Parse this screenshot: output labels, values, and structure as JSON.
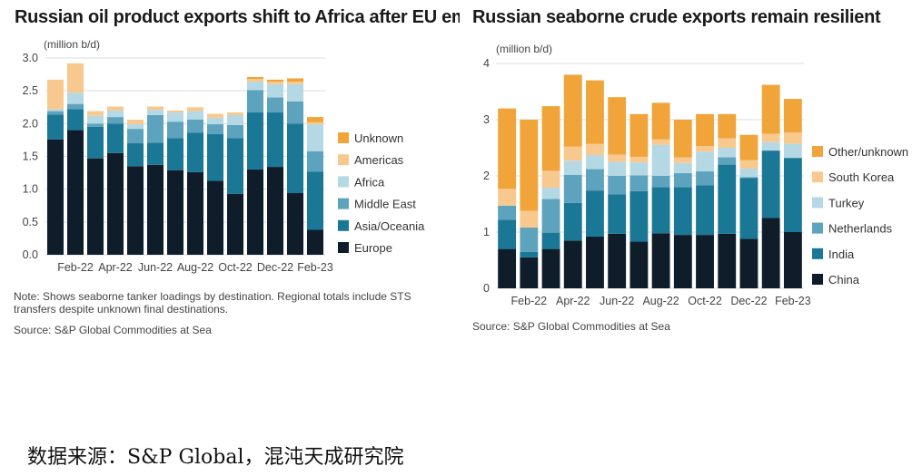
{
  "footer": {
    "caption": "数据来源：S&P Global，混沌天成研究院"
  },
  "chart_data": [
    {
      "type": "bar",
      "stacked": true,
      "title": "Russian oil product exports shift to Africa after EU embargo",
      "ylabel": "(million b/d)",
      "ylim": [
        0,
        3.0
      ],
      "yticks": [
        "0.0",
        "0.5",
        "1.0",
        "1.5",
        "2.0",
        "2.5",
        "3.0"
      ],
      "categories": [
        "Jan-22",
        "Feb-22",
        "Mar-22",
        "Apr-22",
        "May-22",
        "Jun-22",
        "Jul-22",
        "Aug-22",
        "Sep-22",
        "Oct-22",
        "Nov-22",
        "Dec-22",
        "Jan-23",
        "Feb-23"
      ],
      "xtick_labels": [
        "",
        "Feb-22",
        "",
        "Apr-22",
        "",
        "Jun-22",
        "",
        "Aug-22",
        "",
        "Oct-22",
        "",
        "Dec-22",
        "",
        "Feb-23"
      ],
      "legend_position": "right",
      "grid": "horizontal",
      "series": [
        {
          "name": "Europe",
          "color": "#0f1d2b",
          "values": [
            1.76,
            1.9,
            1.47,
            1.55,
            1.35,
            1.37,
            1.29,
            1.26,
            1.13,
            0.93,
            1.3,
            1.34,
            0.94,
            0.38
          ]
        },
        {
          "name": "Asia/Oceania",
          "color": "#1a7796",
          "values": [
            0.38,
            0.32,
            0.48,
            0.45,
            0.35,
            0.34,
            0.49,
            0.6,
            0.71,
            0.85,
            0.87,
            0.83,
            1.06,
            0.89
          ]
        },
        {
          "name": "Middle East",
          "color": "#5ea3bd",
          "values": [
            0.05,
            0.08,
            0.05,
            0.1,
            0.22,
            0.42,
            0.25,
            0.2,
            0.15,
            0.2,
            0.34,
            0.23,
            0.34,
            0.31
          ]
        },
        {
          "name": "Africa",
          "color": "#b5d8e5",
          "values": [
            0.03,
            0.17,
            0.12,
            0.1,
            0.07,
            0.08,
            0.14,
            0.13,
            0.1,
            0.15,
            0.13,
            0.2,
            0.26,
            0.41
          ]
        },
        {
          "name": "Americas",
          "color": "#f8c98e",
          "values": [
            0.45,
            0.45,
            0.07,
            0.06,
            0.07,
            0.05,
            0.03,
            0.06,
            0.06,
            0.04,
            0.04,
            0.04,
            0.04,
            0.03
          ]
        },
        {
          "name": "Unknown",
          "color": "#f0a43a",
          "values": [
            0.0,
            0.0,
            0.0,
            0.0,
            0.0,
            0.0,
            0.0,
            0.0,
            0.0,
            0.0,
            0.03,
            0.03,
            0.05,
            0.08
          ]
        }
      ],
      "note": "Note: Shows seaborne tanker loadings by destination. Regional totals include STS transfers despite unknown final destinations.",
      "source": "Source: S&P Global Commodities at Sea"
    },
    {
      "type": "bar",
      "stacked": true,
      "title": "Russian seaborne crude exports remain resilient",
      "ylabel": "(million b/d)",
      "ylim": [
        0,
        4
      ],
      "yticks": [
        "0",
        "1",
        "2",
        "3",
        "4"
      ],
      "categories": [
        "Jan-22",
        "Feb-22",
        "Mar-22",
        "Apr-22",
        "May-22",
        "Jun-22",
        "Jul-22",
        "Aug-22",
        "Sep-22",
        "Oct-22",
        "Nov-22",
        "Dec-22",
        "Jan-23",
        "Feb-23"
      ],
      "xtick_labels": [
        "",
        "Feb-22",
        "",
        "Apr-22",
        "",
        "Jun-22",
        "",
        "Aug-22",
        "",
        "Oct-22",
        "",
        "Dec-22",
        "",
        "Feb-23"
      ],
      "legend_position": "right",
      "grid": "horizontal",
      "series": [
        {
          "name": "China",
          "color": "#0f1d2b",
          "values": [
            0.7,
            0.55,
            0.7,
            0.85,
            0.92,
            0.97,
            0.83,
            0.98,
            0.95,
            0.95,
            0.97,
            0.88,
            1.25,
            1.0
          ]
        },
        {
          "name": "India",
          "color": "#1a7796",
          "values": [
            0.52,
            0.1,
            0.29,
            0.67,
            0.82,
            0.7,
            0.9,
            0.82,
            0.85,
            0.88,
            1.23,
            1.08,
            1.2,
            1.32
          ]
        },
        {
          "name": "Netherlands",
          "color": "#5ea3bd",
          "values": [
            0.25,
            0.43,
            0.6,
            0.5,
            0.38,
            0.33,
            0.28,
            0.2,
            0.25,
            0.25,
            0.13,
            0.02,
            0.0,
            0.0
          ]
        },
        {
          "name": "Turkey",
          "color": "#b5d8e5",
          "values": [
            0.0,
            0.0,
            0.2,
            0.25,
            0.25,
            0.25,
            0.23,
            0.55,
            0.18,
            0.35,
            0.17,
            0.15,
            0.15,
            0.25
          ]
        },
        {
          "name": "South Korea",
          "color": "#f8c98e",
          "values": [
            0.3,
            0.3,
            0.3,
            0.25,
            0.2,
            0.13,
            0.1,
            0.1,
            0.1,
            0.1,
            0.17,
            0.15,
            0.15,
            0.2
          ]
        },
        {
          "name": "Other/unknown",
          "color": "#f0a43a",
          "values": [
            1.43,
            1.62,
            1.15,
            1.28,
            1.13,
            1.02,
            0.76,
            0.65,
            0.67,
            0.57,
            0.43,
            0.45,
            0.87,
            0.6
          ]
        }
      ],
      "source": "Source: S&P Global Commodities at Sea"
    }
  ]
}
